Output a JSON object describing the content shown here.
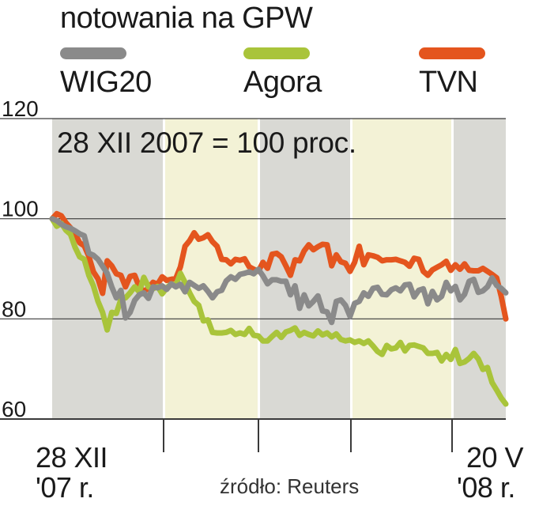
{
  "title": "notowania na GPW",
  "note": "28 XII 2007 = 100 proc.",
  "source": "źródło: Reuters",
  "x_start_label": [
    "28 XII",
    "'07 r."
  ],
  "x_end_label": [
    "20 V",
    "'08 r."
  ],
  "colors": {
    "WIG20": "#8a8a8a",
    "Agora": "#a9c43a",
    "TVN": "#e4551e",
    "band_gray": "#d9d9d4",
    "band_yellow": "#f3f2d6",
    "grid": "#3a3a3a"
  },
  "chart_data": {
    "type": "line",
    "title": "notowania na GPW",
    "subtitle": "28 XII 2007 = 100 proc.",
    "ylim": [
      60,
      120
    ],
    "yticks": [
      60,
      80,
      100,
      120
    ],
    "x_start": "28 XII '07 r.",
    "x_end": "20 V '08 r.",
    "x_index_range": [
      0,
      99
    ],
    "legend_placement": "top",
    "grid": true,
    "series": [
      {
        "name": "WIG20",
        "color": "#8a8a8a",
        "values": [
          100,
          99.6,
          98.9,
          98.4,
          98.1,
          97.6,
          97,
          96.6,
          93.1,
          92.7,
          91.9,
          90.5,
          89.1,
          86.4,
          84.2,
          85.7,
          80.2,
          81.3,
          83.7,
          84.8,
          85.2,
          84.1,
          86.4,
          86.2,
          86.6,
          85.9,
          87,
          86.4,
          86.9,
          85.4,
          87.3,
          86.7,
          86.1,
          86.6,
          85.5,
          84.2,
          85.4,
          85.7,
          87.6,
          88.4,
          87.9,
          88.9,
          89.1,
          89.4,
          89,
          89.9,
          88.6,
          87,
          87.8,
          87.8,
          87.5,
          87.5,
          84.8,
          86.6,
          82.1,
          84.8,
          82.6,
          83.5,
          84.6,
          81.6,
          81.4,
          79.3,
          83.5,
          83.8,
          82.7,
          80.5,
          83.1,
          83.5,
          85.2,
          84.5,
          86.1,
          86.3,
          84.9,
          84.8,
          85.8,
          86.2,
          85.6,
          86.8,
          86.9,
          84.4,
          85.7,
          86,
          83,
          85.5,
          83.8,
          84.5,
          87.3,
          85.6,
          86.5,
          83.8,
          84.9,
          87.5,
          87.9,
          85.3,
          85.6,
          86.4,
          88.2,
          86.7,
          86.1,
          85.2
        ]
      },
      {
        "name": "Agora",
        "color": "#a9c43a",
        "values": [
          100,
          98.5,
          99.1,
          97.7,
          96.9,
          94.3,
          92.4,
          91.9,
          88.7,
          86.6,
          83.5,
          81.3,
          77.8,
          81.3,
          81.1,
          83.9,
          84.2,
          85.2,
          86.4,
          85.4,
          88.3,
          86.4,
          86,
          86.5,
          85,
          86.2,
          87,
          86.7,
          89.1,
          87.3,
          85.2,
          83.5,
          82.7,
          79.6,
          79.8,
          77.3,
          77.2,
          77.2,
          77.3,
          77.7,
          76.9,
          77.2,
          76.9,
          78.1,
          76.7,
          76.6,
          75.6,
          75.6,
          76.5,
          77.3,
          76.3,
          77.4,
          77.7,
          78.2,
          76.7,
          77.3,
          76.9,
          76.6,
          77.6,
          76.8,
          77.2,
          76.4,
          77,
          75.9,
          75.6,
          75.8,
          75.3,
          75.6,
          75.1,
          75.6,
          74.6,
          73.5,
          72.9,
          74.7,
          74,
          74.2,
          75.3,
          73.6,
          74.7,
          74.8,
          74.5,
          74.2,
          73.1,
          73.1,
          73.3,
          71.6,
          72.9,
          71.9,
          73.9,
          71.1,
          71.4,
          72.1,
          73.1,
          72,
          69.9,
          70.3,
          67.3,
          65.8,
          64.2,
          63
        ]
      },
      {
        "name": "TVN",
        "color": "#e4551e",
        "values": [
          100,
          101,
          100.6,
          99.2,
          98.2,
          97,
          95.2,
          94.6,
          92.5,
          89.4,
          88,
          85.1,
          91.6,
          90.6,
          89,
          88.7,
          86.4,
          88.5,
          88.7,
          86.4,
          85.5,
          86.1,
          87.3,
          86.9,
          88.4,
          87.7,
          87.9,
          88.1,
          90.4,
          94.5,
          95.6,
          97.2,
          95.9,
          96.2,
          96.8,
          95.4,
          94.5,
          91.9,
          91.8,
          91,
          91.9,
          91.7,
          92,
          90.4,
          89.9,
          89.5,
          91.3,
          90.1,
          92.9,
          93.1,
          92.4,
          90.6,
          88.7,
          91.8,
          91.6,
          93.6,
          94.8,
          93.8,
          94.4,
          94.9,
          94.8,
          90.6,
          92.8,
          91.4,
          91.1,
          89.5,
          91.3,
          94.5,
          90.8,
          92.8,
          92.6,
          92.3,
          91.6,
          91.8,
          91.8,
          91.9,
          91.6,
          91.3,
          90.5,
          92.1,
          91.9,
          89.5,
          88.7,
          89.8,
          90.3,
          90.8,
          91.5,
          89.7,
          90.8,
          89.9,
          91,
          89.7,
          89.6,
          89.6,
          90.1,
          89.5,
          88.9,
          88.2,
          84.5,
          80
        ]
      }
    ]
  }
}
